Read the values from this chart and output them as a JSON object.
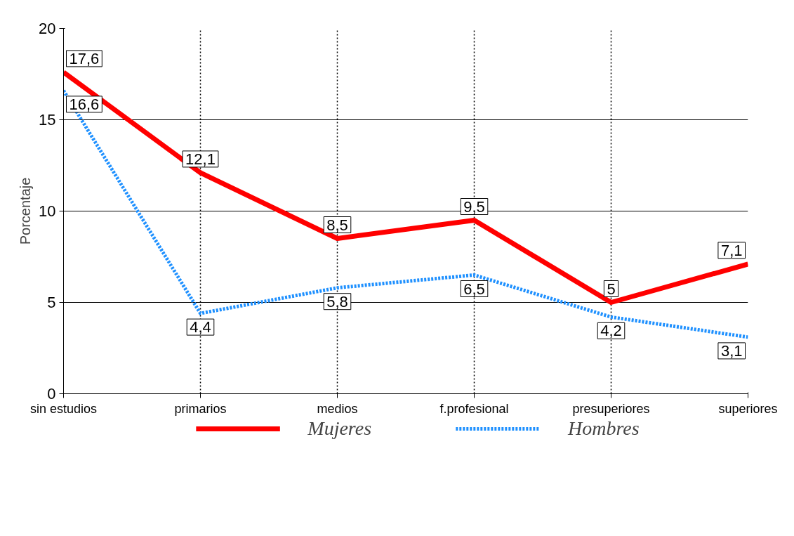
{
  "chart_data": {
    "type": "line",
    "ylabel": "Porcentaje",
    "categories": [
      "sin estudios",
      "primarios",
      "medios",
      "f.profesional",
      "presuperiores",
      "superiores"
    ],
    "series": [
      {
        "name": "Mujeres",
        "color": "#ff0000",
        "line_style": "solid",
        "values": [
          17.6,
          12.1,
          8.5,
          9.5,
          5,
          7.1
        ],
        "value_labels": [
          "17,6",
          "12,1",
          "8,5",
          "9,5",
          "5",
          "7,1"
        ]
      },
      {
        "name": "Hombres",
        "color": "#1e90ff",
        "line_style": "dotted",
        "values": [
          16.6,
          4.4,
          5.8,
          6.5,
          4.2,
          3.1
        ],
        "value_labels": [
          "16,6",
          "4,4",
          "5,8",
          "6,5",
          "4,2",
          "3,1"
        ]
      }
    ],
    "ylim": [
      0,
      20
    ],
    "yticks": [
      0,
      5,
      10,
      15,
      20
    ],
    "grid": true,
    "legend": "bottom",
    "marker": "none"
  }
}
